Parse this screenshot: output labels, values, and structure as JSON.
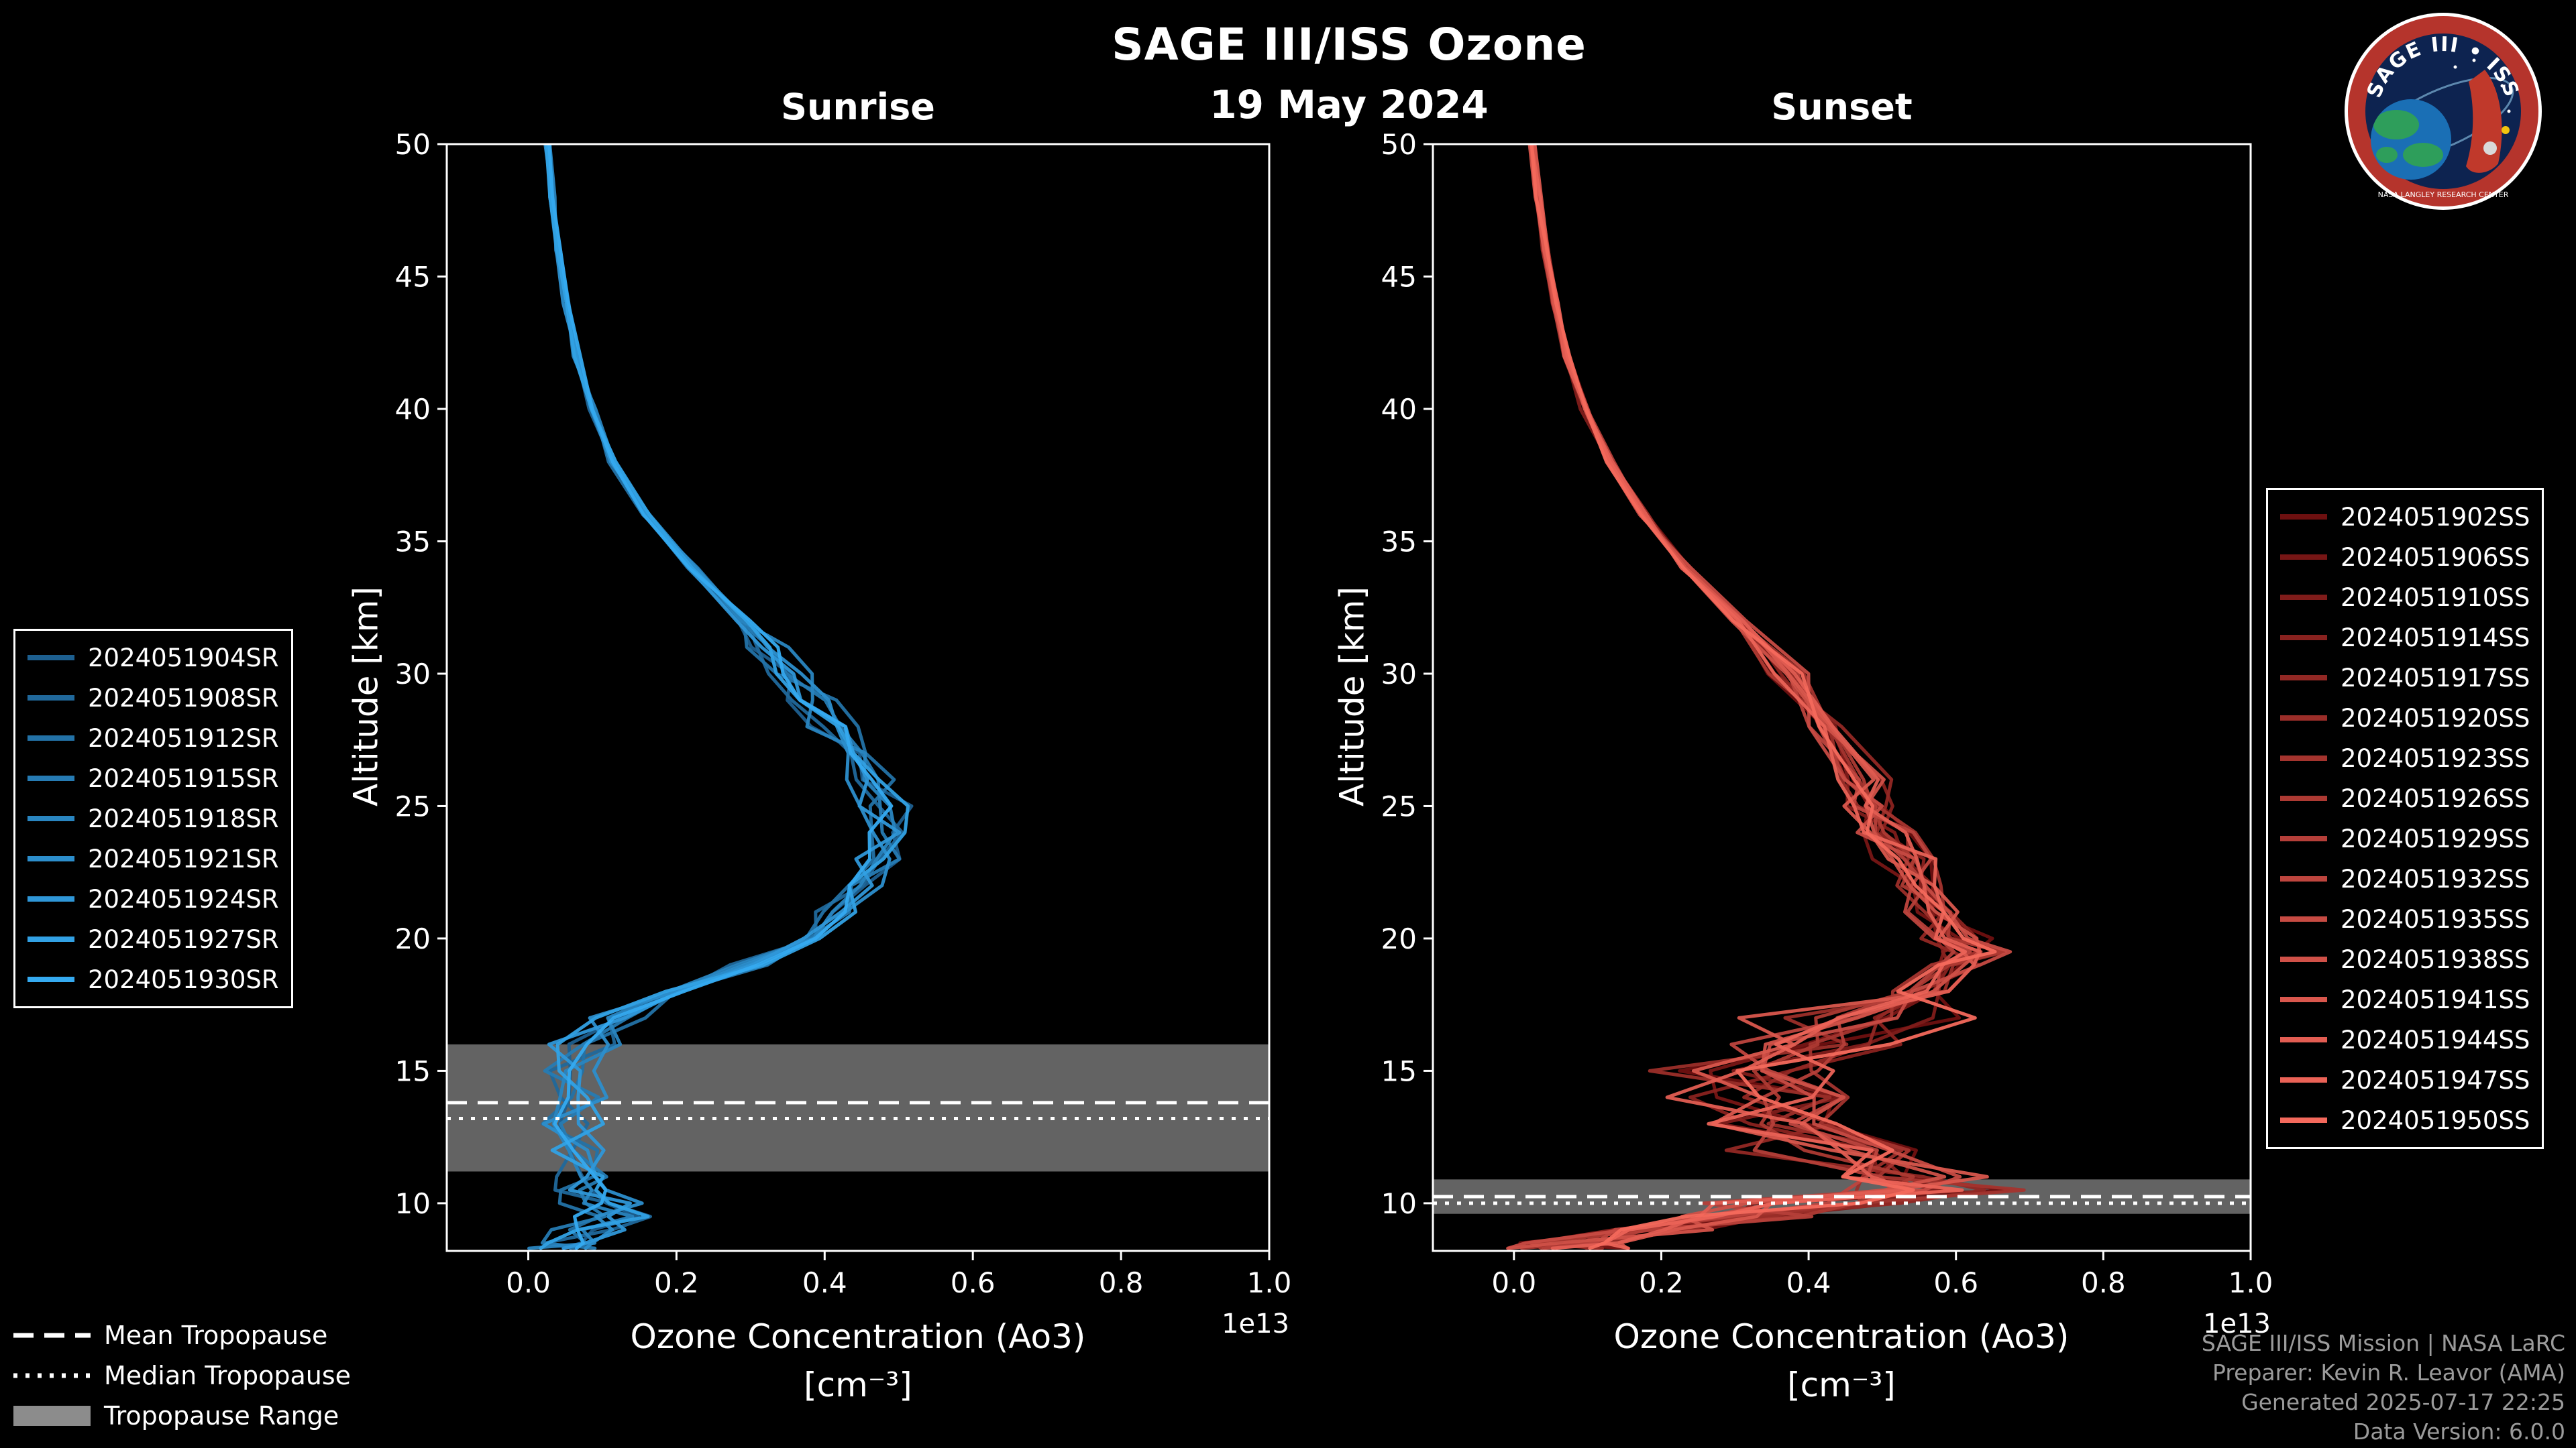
{
  "header": {
    "title": "SAGE III/ISS Ozone",
    "date": "19 May 2024"
  },
  "logo": {
    "title": "SAGE III • ISS",
    "org": "NASA LANGLEY RESEARCH CENTER"
  },
  "legend_tropopause": {
    "mean": "Mean Tropopause",
    "median": "Median Tropopause",
    "range": "Tropopause Range"
  },
  "footer": {
    "lines": [
      "SAGE III/ISS Mission | NASA LaRC",
      "Preparer: Kevin R. Leavor (AMA)",
      "Generated 2025-07-17 22:25",
      "Data Version: 6.0.0"
    ]
  },
  "chart_data": [
    {
      "type": "line",
      "id": "sunrise",
      "title": "Sunrise",
      "xlabel": "Ozone Concentration (Ao3)",
      "xlabel_unit": "[cm⁻³]",
      "ylabel": "Altitude [km]",
      "offset_label": "1e13",
      "xlim": [
        -0.11,
        1.0
      ],
      "ylim": [
        8.2,
        50
      ],
      "xticks": [
        0.0,
        0.2,
        0.4,
        0.6,
        0.8,
        1.0
      ],
      "xtick_labels": [
        "0.0",
        "0.2",
        "0.4",
        "0.6",
        "0.8",
        "1.0"
      ],
      "yticks": [
        10,
        15,
        20,
        25,
        30,
        35,
        40,
        45,
        50
      ],
      "legend_position": "left",
      "series_names": [
        "2024051904SR",
        "2024051908SR",
        "2024051912SR",
        "2024051915SR",
        "2024051918SR",
        "2024051921SR",
        "2024051924SR",
        "2024051927SR",
        "2024051930SR"
      ],
      "color_start": "#1d5f8f",
      "color_end": "#35aaf0",
      "units": "cm-3 (values x 1e13)",
      "base_profile": {
        "altitude_km": [
          50,
          48,
          46,
          44,
          42,
          40,
          38,
          36,
          34,
          32,
          31,
          30,
          29,
          28,
          27,
          26,
          25,
          24,
          23,
          22,
          21,
          20,
          19,
          18,
          17,
          16,
          15,
          14,
          13,
          12,
          11,
          10.5,
          10,
          9.5,
          9,
          8.5,
          8.3
        ],
        "value_1e13": [
          0.025,
          0.032,
          0.04,
          0.05,
          0.065,
          0.085,
          0.115,
          0.16,
          0.22,
          0.29,
          0.32,
          0.35,
          0.38,
          0.41,
          0.44,
          0.46,
          0.48,
          0.49,
          0.47,
          0.45,
          0.42,
          0.38,
          0.3,
          0.2,
          0.12,
          0.08,
          0.065,
          0.06,
          0.065,
          0.07,
          0.075,
          0.08,
          0.09,
          0.12,
          0.08,
          0.06,
          0.05
        ]
      },
      "tropopause": {
        "mean_km": 13.8,
        "median_km": 13.2,
        "range_km": [
          11.2,
          16.0
        ]
      }
    },
    {
      "type": "line",
      "id": "sunset",
      "title": "Sunset",
      "xlabel": "Ozone Concentration (Ao3)",
      "xlabel_unit": "[cm⁻³]",
      "ylabel": "Altitude [km]",
      "offset_label": "1e13",
      "xlim": [
        -0.11,
        1.0
      ],
      "ylim": [
        8.2,
        50
      ],
      "xticks": [
        0.0,
        0.2,
        0.4,
        0.6,
        0.8,
        1.0
      ],
      "xtick_labels": [
        "0.0",
        "0.2",
        "0.4",
        "0.6",
        "0.8",
        "1.0"
      ],
      "yticks": [
        10,
        15,
        20,
        25,
        30,
        35,
        40,
        45,
        50
      ],
      "legend_position": "right",
      "series_names": [
        "2024051902SS",
        "2024051906SS",
        "2024051910SS",
        "2024051914SS",
        "2024051917SS",
        "2024051920SS",
        "2024051923SS",
        "2024051926SS",
        "2024051929SS",
        "2024051932SS",
        "2024051935SS",
        "2024051938SS",
        "2024051941SS",
        "2024051944SS",
        "2024051947SS",
        "2024051950SS"
      ],
      "color_start": "#6e1010",
      "color_end": "#f4695c",
      "units": "cm-3 (values x 1e13)",
      "base_profile": {
        "altitude_km": [
          50,
          48,
          46,
          44,
          42,
          40,
          38,
          36,
          34,
          32,
          30,
          28,
          26,
          25,
          24,
          23,
          22,
          21,
          20,
          19.5,
          19,
          18,
          17,
          16,
          15,
          14,
          13,
          12,
          11,
          10.5,
          10,
          9.5,
          9,
          8.5,
          8.3
        ],
        "value_1e13": [
          0.025,
          0.033,
          0.043,
          0.056,
          0.072,
          0.095,
          0.13,
          0.175,
          0.235,
          0.305,
          0.37,
          0.42,
          0.47,
          0.49,
          0.51,
          0.53,
          0.55,
          0.57,
          0.6,
          0.62,
          0.61,
          0.56,
          0.48,
          0.4,
          0.34,
          0.36,
          0.4,
          0.45,
          0.5,
          0.52,
          0.42,
          0.28,
          0.17,
          0.1,
          0.08
        ]
      },
      "tropopause": {
        "mean_km": 10.25,
        "median_km": 10.0,
        "range_km": [
          9.6,
          10.9
        ]
      }
    }
  ],
  "colors": {
    "background": "#000000",
    "axis": "#ffffff",
    "tropopause_band": "#a0a0a0",
    "tropopause_lines": "#ffffff"
  }
}
